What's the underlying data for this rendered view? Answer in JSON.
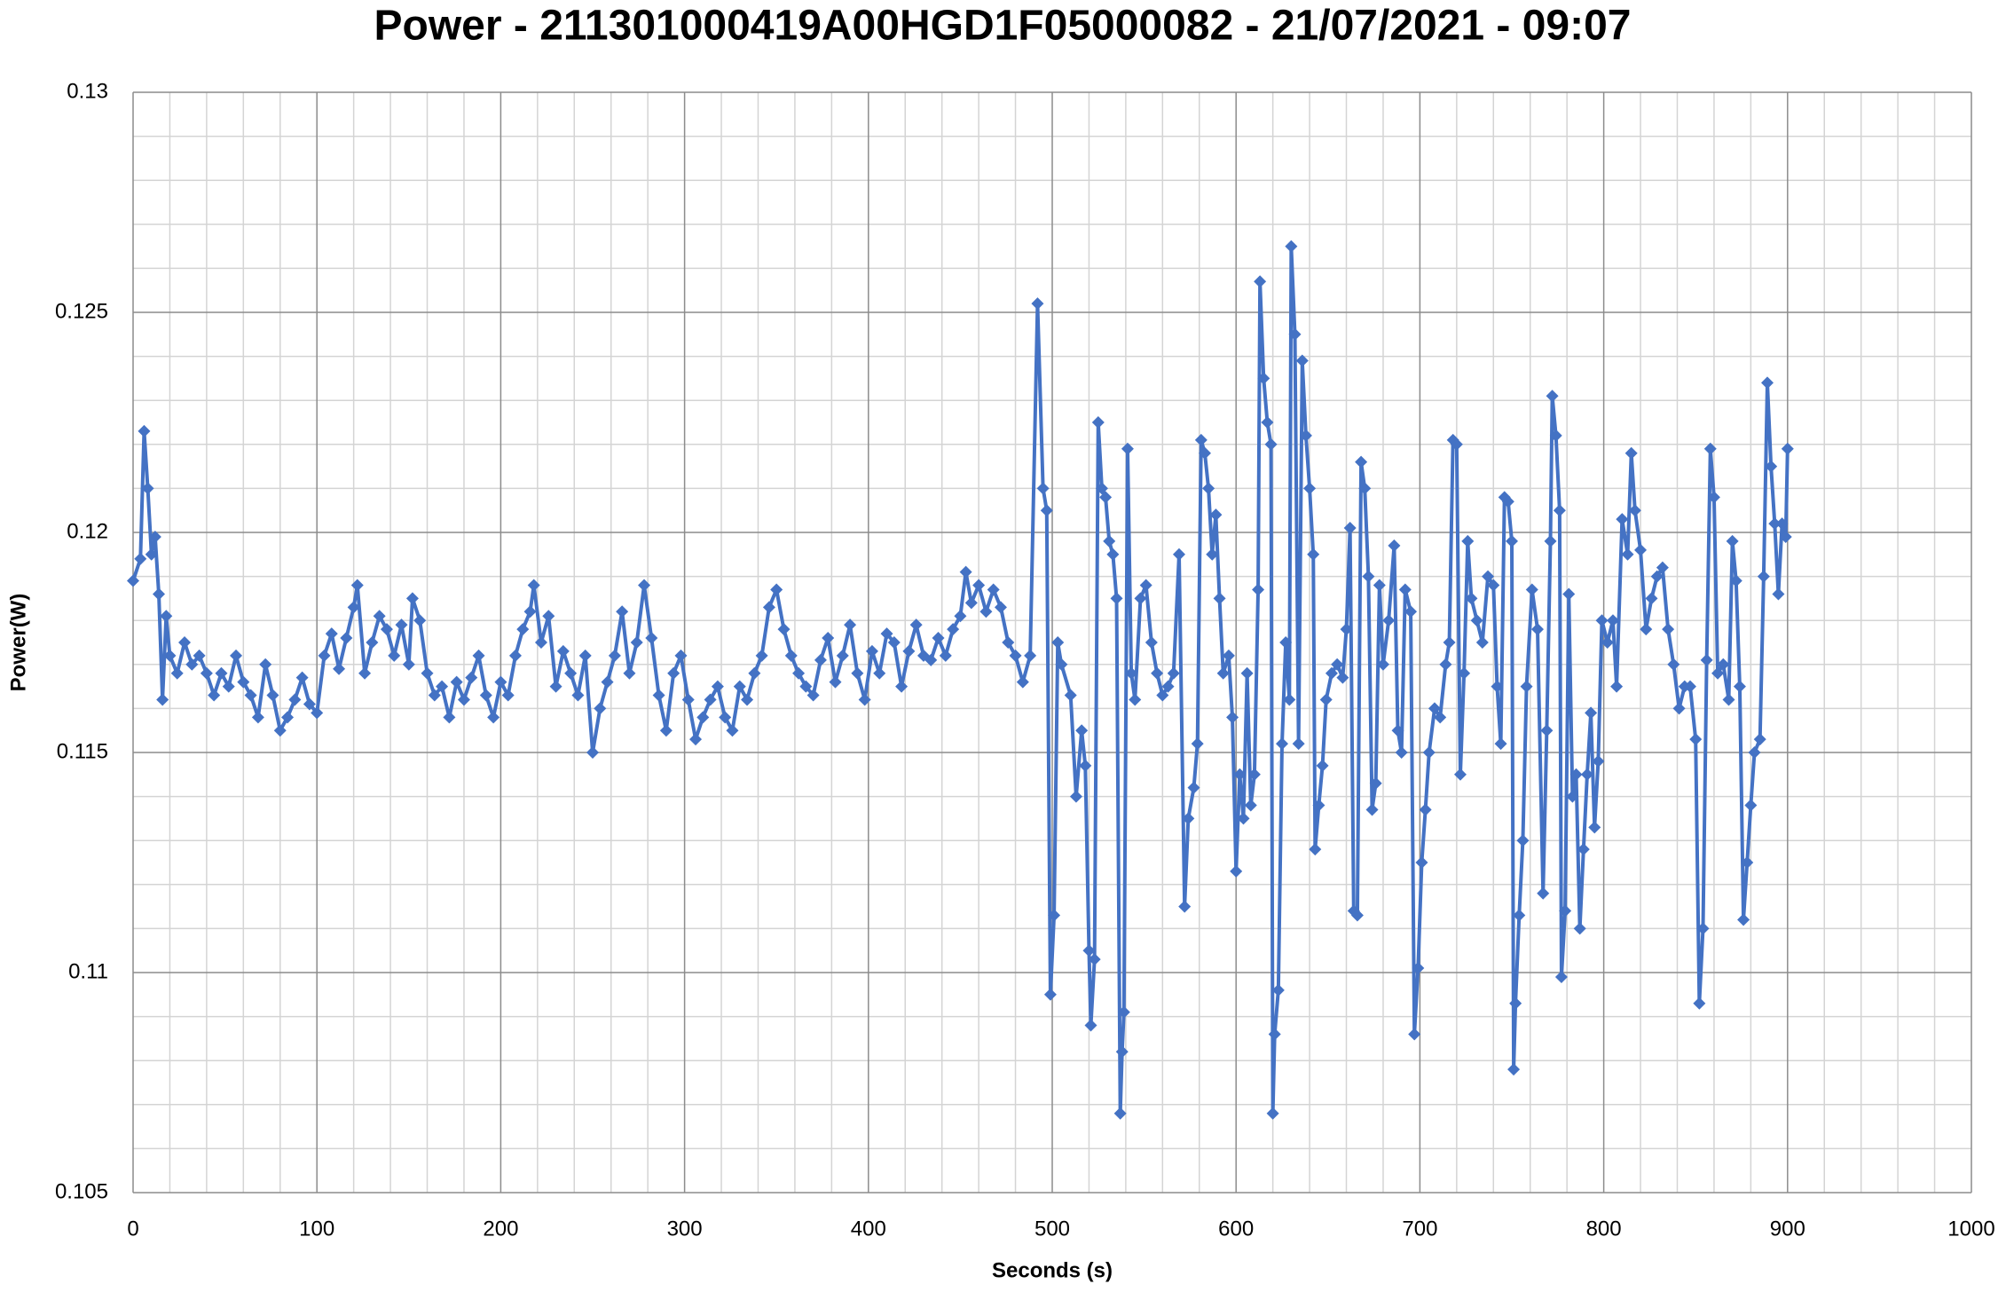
{
  "chart_data": {
    "type": "line",
    "title": "Power - 211301000419A00HGD1F05000082 - 21/07/2021 - 09:07",
    "x_label": "Seconds (s)",
    "y_label": "Power(W)",
    "xlim": [
      0,
      1000
    ],
    "xticks": [
      0,
      100,
      200,
      300,
      400,
      500,
      600,
      700,
      800,
      900,
      1000
    ],
    "ylim": [
      0.105,
      0.13
    ],
    "yticks": [
      0.105,
      0.11,
      0.115,
      0.12,
      0.125,
      0.13
    ],
    "grid": true,
    "minor_grid": true,
    "series": [
      {
        "name": "Power",
        "color": "#4472c4",
        "x": [
          0,
          4,
          6,
          8,
          10,
          12,
          14,
          16,
          18,
          20,
          24,
          28,
          32,
          36,
          40,
          44,
          48,
          52,
          56,
          60,
          64,
          68,
          72,
          76,
          80,
          84,
          88,
          92,
          96,
          100,
          104,
          108,
          112,
          116,
          120,
          122,
          126,
          130,
          134,
          138,
          142,
          146,
          150,
          152,
          156,
          160,
          164,
          168,
          172,
          176,
          180,
          184,
          188,
          192,
          196,
          200,
          204,
          208,
          212,
          216,
          218,
          222,
          226,
          230,
          234,
          238,
          242,
          246,
          250,
          254,
          258,
          262,
          266,
          270,
          274,
          278,
          282,
          286,
          290,
          294,
          298,
          302,
          306,
          310,
          314,
          318,
          322,
          326,
          330,
          334,
          338,
          342,
          346,
          350,
          354,
          358,
          362,
          366,
          370,
          374,
          378,
          382,
          386,
          390,
          394,
          398,
          402,
          406,
          410,
          414,
          418,
          422,
          426,
          430,
          434,
          438,
          442,
          446,
          450,
          453,
          456,
          460,
          464,
          468,
          472,
          476,
          480,
          484,
          488,
          492,
          495,
          497,
          499,
          501,
          503,
          505,
          510,
          513,
          516,
          518,
          520,
          521,
          523,
          525,
          527,
          529,
          531,
          533,
          535,
          537,
          538,
          539,
          541,
          543,
          545,
          548,
          551,
          554,
          557,
          560,
          563,
          566,
          569,
          572,
          574,
          577,
          579,
          581,
          583,
          585,
          587,
          589,
          591,
          593,
          596,
          598,
          600,
          602,
          604,
          606,
          608,
          610,
          612,
          613,
          615,
          617,
          619,
          620,
          621,
          623,
          625,
          627,
          629,
          630,
          632,
          634,
          636,
          638,
          640,
          642,
          643,
          645,
          647,
          649,
          652,
          655,
          658,
          660,
          662,
          664,
          666,
          668,
          670,
          672,
          674,
          676,
          678,
          680,
          683,
          686,
          688,
          690,
          692,
          695,
          697,
          699,
          701,
          703,
          705,
          708,
          711,
          714,
          716,
          718,
          720,
          722,
          724,
          726,
          728,
          731,
          734,
          737,
          740,
          742,
          744,
          746,
          748,
          750,
          751,
          752,
          754,
          756,
          758,
          761,
          764,
          767,
          769,
          771,
          772,
          774,
          776,
          777,
          779,
          781,
          783,
          785,
          787,
          789,
          791,
          793,
          795,
          797,
          799,
          802,
          805,
          807,
          810,
          813,
          815,
          817,
          820,
          823,
          826,
          829,
          832,
          835,
          838,
          841,
          844,
          847,
          850,
          852,
          854,
          856,
          858,
          860,
          862,
          865,
          868,
          870,
          872,
          874,
          876,
          878,
          880,
          882,
          885,
          887,
          889,
          891,
          893,
          895,
          897,
          899,
          900
        ],
        "values": [
          0.1189,
          0.1194,
          0.1223,
          0.121,
          0.1195,
          0.1199,
          0.1186,
          0.1162,
          0.1181,
          0.1172,
          0.1168,
          0.1175,
          0.117,
          0.1172,
          0.1168,
          0.1163,
          0.1168,
          0.1165,
          0.1172,
          0.1166,
          0.1163,
          0.1158,
          0.117,
          0.1163,
          0.1155,
          0.1158,
          0.1162,
          0.1167,
          0.1161,
          0.1159,
          0.1172,
          0.1177,
          0.1169,
          0.1176,
          0.1183,
          0.1188,
          0.1168,
          0.1175,
          0.1181,
          0.1178,
          0.1172,
          0.1179,
          0.117,
          0.1185,
          0.118,
          0.1168,
          0.1163,
          0.1165,
          0.1158,
          0.1166,
          0.1162,
          0.1167,
          0.1172,
          0.1163,
          0.1158,
          0.1166,
          0.1163,
          0.1172,
          0.1178,
          0.1182,
          0.1188,
          0.1175,
          0.1181,
          0.1165,
          0.1173,
          0.1168,
          0.1163,
          0.1172,
          0.115,
          0.116,
          0.1166,
          0.1172,
          0.1182,
          0.1168,
          0.1175,
          0.1188,
          0.1176,
          0.1163,
          0.1155,
          0.1168,
          0.1172,
          0.1162,
          0.1153,
          0.1158,
          0.1162,
          0.1165,
          0.1158,
          0.1155,
          0.1165,
          0.1162,
          0.1168,
          0.1172,
          0.1183,
          0.1187,
          0.1178,
          0.1172,
          0.1168,
          0.1165,
          0.1163,
          0.1171,
          0.1176,
          0.1166,
          0.1172,
          0.1179,
          0.1168,
          0.1162,
          0.1173,
          0.1168,
          0.1177,
          0.1175,
          0.1165,
          0.1173,
          0.1179,
          0.1172,
          0.1171,
          0.1176,
          0.1172,
          0.1178,
          0.1181,
          0.1191,
          0.1184,
          0.1188,
          0.1182,
          0.1187,
          0.1183,
          0.1175,
          0.1172,
          0.1166,
          0.1172,
          0.1252,
          0.121,
          0.1205,
          0.1095,
          0.1113,
          0.1175,
          0.117,
          0.1163,
          0.114,
          0.1155,
          0.1147,
          0.1105,
          0.1088,
          0.1103,
          0.1225,
          0.121,
          0.1208,
          0.1198,
          0.1195,
          0.1185,
          0.1068,
          0.1082,
          0.1091,
          0.1219,
          0.1168,
          0.1162,
          0.1185,
          0.1188,
          0.1175,
          0.1168,
          0.1163,
          0.1165,
          0.1168,
          0.1195,
          0.1115,
          0.1135,
          0.1142,
          0.1152,
          0.1221,
          0.1218,
          0.121,
          0.1195,
          0.1204,
          0.1185,
          0.1168,
          0.1172,
          0.1158,
          0.1123,
          0.1145,
          0.1135,
          0.1168,
          0.1138,
          0.1145,
          0.1187,
          0.1257,
          0.1235,
          0.1225,
          0.122,
          0.1068,
          0.1086,
          0.1096,
          0.1152,
          0.1175,
          0.1162,
          0.1265,
          0.1245,
          0.1152,
          0.1239,
          0.1222,
          0.121,
          0.1195,
          0.1128,
          0.1138,
          0.1147,
          0.1162,
          0.1168,
          0.117,
          0.1167,
          0.1178,
          0.1201,
          0.1114,
          0.1113,
          0.1216,
          0.121,
          0.119,
          0.1137,
          0.1143,
          0.1188,
          0.117,
          0.118,
          0.1197,
          0.1155,
          0.115,
          0.1187,
          0.1182,
          0.1086,
          0.1101,
          0.1125,
          0.1137,
          0.115,
          0.116,
          0.1158,
          0.117,
          0.1175,
          0.1221,
          0.122,
          0.1145,
          0.1168,
          0.1198,
          0.1185,
          0.118,
          0.1175,
          0.119,
          0.1188,
          0.1165,
          0.1152,
          0.1208,
          0.1207,
          0.1198,
          0.1078,
          0.1093,
          0.1113,
          0.113,
          0.1165,
          0.1187,
          0.1178,
          0.1118,
          0.1155,
          0.1198,
          0.1231,
          0.1222,
          0.1205,
          0.1099,
          0.1114,
          0.1186,
          0.114,
          0.1145,
          0.111,
          0.1128,
          0.1145,
          0.1159,
          0.1133,
          0.1148,
          0.118,
          0.1175,
          0.118,
          0.1165,
          0.1203,
          0.1195,
          0.1218,
          0.1205,
          0.1196,
          0.1178,
          0.1185,
          0.119,
          0.1192,
          0.1178,
          0.117,
          0.116,
          0.1165,
          0.1165,
          0.1153,
          0.1093,
          0.111,
          0.1171,
          0.1219,
          0.1208,
          0.1168,
          0.117,
          0.1162,
          0.1198,
          0.1189,
          0.1165,
          0.1112,
          0.1125,
          0.1138,
          0.115,
          0.1153,
          0.119,
          0.1234,
          0.1215,
          0.1202,
          0.1186,
          0.1202,
          0.1199,
          0.1219
        ]
      }
    ]
  }
}
